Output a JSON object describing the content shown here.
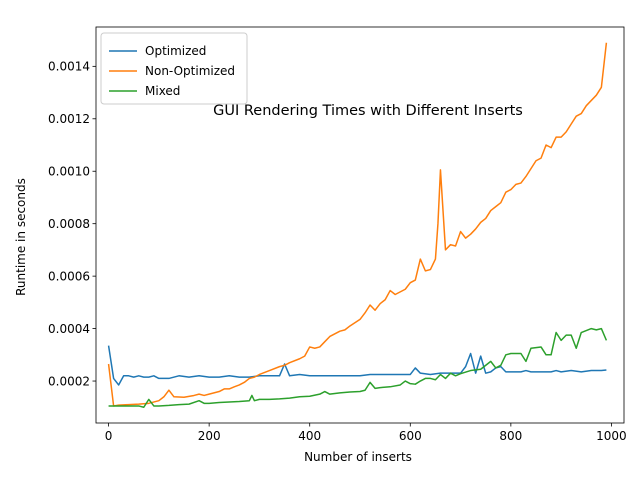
{
  "chart_data": {
    "type": "line",
    "title": "GUI Rendering Times with Different Inserts",
    "xlabel": "Number of inserts",
    "ylabel": "Runtime in seconds",
    "xlim": [
      -25,
      1025
    ],
    "ylim": [
      4e-05,
      0.00155
    ],
    "xticks": [
      0,
      200,
      400,
      600,
      800,
      1000
    ],
    "xtick_labels": [
      "0",
      "200",
      "400",
      "600",
      "800",
      "1000"
    ],
    "yticks": [
      0.0002,
      0.0004,
      0.0006,
      0.0008,
      0.001,
      0.0012,
      0.0014
    ],
    "ytick_labels": [
      "0.0002",
      "0.0004",
      "0.0006",
      "0.0008",
      "0.0010",
      "0.0012",
      "0.0014"
    ],
    "grid": false,
    "legend_position": "top-left",
    "series": [
      {
        "name": "Optimized",
        "color": "#1f77b4",
        "points": [
          [
            0,
            0.000335
          ],
          [
            10,
            0.00021
          ],
          [
            20,
            0.000185
          ],
          [
            30,
            0.00022
          ],
          [
            40,
            0.00022
          ],
          [
            50,
            0.000215
          ],
          [
            60,
            0.00022
          ],
          [
            70,
            0.000215
          ],
          [
            80,
            0.000215
          ],
          [
            90,
            0.00022
          ],
          [
            100,
            0.00021
          ],
          [
            120,
            0.00021
          ],
          [
            140,
            0.00022
          ],
          [
            160,
            0.000215
          ],
          [
            180,
            0.00022
          ],
          [
            200,
            0.000215
          ],
          [
            220,
            0.000215
          ],
          [
            240,
            0.00022
          ],
          [
            260,
            0.000215
          ],
          [
            280,
            0.000215
          ],
          [
            300,
            0.00022
          ],
          [
            320,
            0.00022
          ],
          [
            340,
            0.00022
          ],
          [
            350,
            0.000265
          ],
          [
            360,
            0.00022
          ],
          [
            380,
            0.000225
          ],
          [
            400,
            0.00022
          ],
          [
            420,
            0.00022
          ],
          [
            440,
            0.00022
          ],
          [
            460,
            0.00022
          ],
          [
            480,
            0.00022
          ],
          [
            500,
            0.00022
          ],
          [
            520,
            0.000225
          ],
          [
            540,
            0.000225
          ],
          [
            560,
            0.000225
          ],
          [
            580,
            0.000225
          ],
          [
            600,
            0.000225
          ],
          [
            610,
            0.00025
          ],
          [
            620,
            0.00023
          ],
          [
            640,
            0.000225
          ],
          [
            660,
            0.00023
          ],
          [
            680,
            0.00023
          ],
          [
            700,
            0.00023
          ],
          [
            710,
            0.000255
          ],
          [
            720,
            0.000305
          ],
          [
            730,
            0.00023
          ],
          [
            740,
            0.000295
          ],
          [
            750,
            0.00023
          ],
          [
            760,
            0.000235
          ],
          [
            770,
            0.00025
          ],
          [
            780,
            0.000255
          ],
          [
            790,
            0.000235
          ],
          [
            800,
            0.000235
          ],
          [
            820,
            0.000235
          ],
          [
            830,
            0.00024
          ],
          [
            840,
            0.000235
          ],
          [
            860,
            0.000235
          ],
          [
            880,
            0.000235
          ],
          [
            890,
            0.00024
          ],
          [
            900,
            0.000235
          ],
          [
            920,
            0.00024
          ],
          [
            940,
            0.000235
          ],
          [
            960,
            0.00024
          ],
          [
            980,
            0.00024
          ],
          [
            990,
            0.000242
          ]
        ]
      },
      {
        "name": "Non-Optimized",
        "color": "#ff7f0e",
        "points": [
          [
            0,
            0.000265
          ],
          [
            10,
            0.000105
          ],
          [
            20,
            0.000108
          ],
          [
            40,
            0.00011
          ],
          [
            60,
            0.000112
          ],
          [
            80,
            0.000115
          ],
          [
            100,
            0.000125
          ],
          [
            110,
            0.00014
          ],
          [
            120,
            0.000165
          ],
          [
            130,
            0.00014
          ],
          [
            150,
            0.000138
          ],
          [
            170,
            0.000145
          ],
          [
            180,
            0.00015
          ],
          [
            190,
            0.000145
          ],
          [
            200,
            0.00015
          ],
          [
            220,
            0.00016
          ],
          [
            230,
            0.00017
          ],
          [
            240,
            0.00017
          ],
          [
            250,
            0.000178
          ],
          [
            260,
            0.000185
          ],
          [
            270,
            0.000195
          ],
          [
            280,
            0.00021
          ],
          [
            290,
            0.000215
          ],
          [
            300,
            0.000225
          ],
          [
            320,
            0.00024
          ],
          [
            340,
            0.000255
          ],
          [
            350,
            0.00026
          ],
          [
            360,
            0.00027
          ],
          [
            380,
            0.000285
          ],
          [
            390,
            0.000295
          ],
          [
            400,
            0.00033
          ],
          [
            410,
            0.000325
          ],
          [
            420,
            0.00033
          ],
          [
            430,
            0.00035
          ],
          [
            440,
            0.00037
          ],
          [
            460,
            0.00039
          ],
          [
            470,
            0.000395
          ],
          [
            480,
            0.00041
          ],
          [
            500,
            0.000435
          ],
          [
            510,
            0.00046
          ],
          [
            520,
            0.00049
          ],
          [
            530,
            0.00047
          ],
          [
            540,
            0.000495
          ],
          [
            550,
            0.00051
          ],
          [
            560,
            0.000545
          ],
          [
            570,
            0.00053
          ],
          [
            580,
            0.00054
          ],
          [
            590,
            0.00055
          ],
          [
            600,
            0.000575
          ],
          [
            610,
            0.000585
          ],
          [
            620,
            0.000665
          ],
          [
            630,
            0.00062
          ],
          [
            640,
            0.000625
          ],
          [
            650,
            0.000665
          ],
          [
            655,
            0.0008
          ],
          [
            660,
            0.001005
          ],
          [
            670,
            0.0007
          ],
          [
            680,
            0.00072
          ],
          [
            690,
            0.000715
          ],
          [
            700,
            0.00077
          ],
          [
            710,
            0.000745
          ],
          [
            720,
            0.00076
          ],
          [
            730,
            0.00078
          ],
          [
            740,
            0.000805
          ],
          [
            750,
            0.00082
          ],
          [
            760,
            0.00085
          ],
          [
            770,
            0.000865
          ],
          [
            780,
            0.00088
          ],
          [
            790,
            0.00092
          ],
          [
            800,
            0.00093
          ],
          [
            810,
            0.00095
          ],
          [
            820,
            0.000955
          ],
          [
            830,
            0.00098
          ],
          [
            840,
            0.00101
          ],
          [
            850,
            0.00104
          ],
          [
            860,
            0.00105
          ],
          [
            870,
            0.0011
          ],
          [
            880,
            0.00109
          ],
          [
            890,
            0.00113
          ],
          [
            900,
            0.00113
          ],
          [
            910,
            0.00115
          ],
          [
            920,
            0.00118
          ],
          [
            930,
            0.00121
          ],
          [
            940,
            0.00122
          ],
          [
            950,
            0.00125
          ],
          [
            960,
            0.00127
          ],
          [
            970,
            0.00129
          ],
          [
            980,
            0.00132
          ],
          [
            990,
            0.00149
          ]
        ]
      },
      {
        "name": "Mixed",
        "color": "#2ca02c",
        "points": [
          [
            0,
            0.000105
          ],
          [
            20,
            0.000105
          ],
          [
            40,
            0.000105
          ],
          [
            60,
            0.000105
          ],
          [
            70,
            0.0001
          ],
          [
            80,
            0.00013
          ],
          [
            90,
            0.000105
          ],
          [
            100,
            0.000105
          ],
          [
            120,
            0.000107
          ],
          [
            140,
            0.00011
          ],
          [
            160,
            0.000112
          ],
          [
            180,
            0.000125
          ],
          [
            190,
            0.000115
          ],
          [
            200,
            0.000115
          ],
          [
            220,
            0.000118
          ],
          [
            240,
            0.00012
          ],
          [
            260,
            0.000122
          ],
          [
            280,
            0.000125
          ],
          [
            285,
            0.000145
          ],
          [
            290,
            0.000125
          ],
          [
            300,
            0.00013
          ],
          [
            320,
            0.00013
          ],
          [
            340,
            0.000132
          ],
          [
            360,
            0.000135
          ],
          [
            380,
            0.00014
          ],
          [
            400,
            0.000142
          ],
          [
            420,
            0.00015
          ],
          [
            430,
            0.00016
          ],
          [
            440,
            0.00015
          ],
          [
            460,
            0.000155
          ],
          [
            480,
            0.000158
          ],
          [
            500,
            0.00016
          ],
          [
            510,
            0.000165
          ],
          [
            520,
            0.000195
          ],
          [
            530,
            0.000172
          ],
          [
            540,
            0.000175
          ],
          [
            560,
            0.000178
          ],
          [
            580,
            0.000185
          ],
          [
            590,
            0.0002
          ],
          [
            600,
            0.00019
          ],
          [
            610,
            0.000188
          ],
          [
            620,
            0.0002
          ],
          [
            630,
            0.00021
          ],
          [
            640,
            0.00021
          ],
          [
            650,
            0.000205
          ],
          [
            660,
            0.000225
          ],
          [
            670,
            0.00021
          ],
          [
            680,
            0.00023
          ],
          [
            690,
            0.00022
          ],
          [
            700,
            0.000228
          ],
          [
            720,
            0.00024
          ],
          [
            740,
            0.000245
          ],
          [
            760,
            0.000275
          ],
          [
            770,
            0.00025
          ],
          [
            780,
            0.00026
          ],
          [
            790,
            0.0003
          ],
          [
            800,
            0.000305
          ],
          [
            820,
            0.000305
          ],
          [
            830,
            0.000275
          ],
          [
            840,
            0.000325
          ],
          [
            860,
            0.00033
          ],
          [
            870,
            0.0003
          ],
          [
            880,
            0.0003
          ],
          [
            890,
            0.000385
          ],
          [
            900,
            0.000355
          ],
          [
            910,
            0.000375
          ],
          [
            920,
            0.000375
          ],
          [
            930,
            0.000325
          ],
          [
            940,
            0.000385
          ],
          [
            960,
            0.0004
          ],
          [
            970,
            0.000395
          ],
          [
            980,
            0.0004
          ],
          [
            990,
            0.000355
          ]
        ]
      }
    ]
  }
}
